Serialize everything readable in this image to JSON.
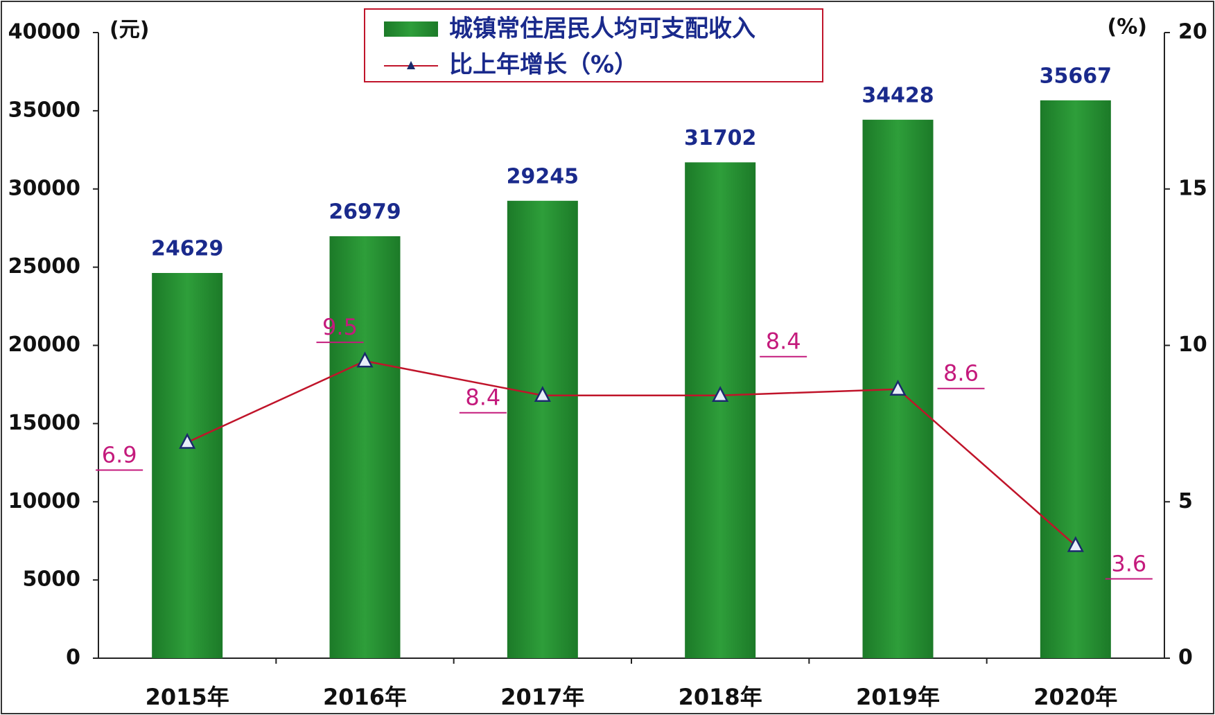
{
  "chart_data": {
    "type": "bar_line",
    "y_unit": "(元)",
    "y2_unit": "(%)",
    "categories": [
      "2015年",
      "2016年",
      "2017年",
      "2018年",
      "2019年",
      "2020年"
    ],
    "series": [
      {
        "name": "城镇常住居民人均可支配收入",
        "type": "bar",
        "color": "#2e9e3a",
        "values": [
          24629,
          26979,
          29245,
          31702,
          34428,
          35667
        ]
      },
      {
        "name": "比上年增长（%）",
        "type": "line",
        "axis": "y2",
        "color": "#c0142a",
        "values": [
          6.9,
          9.5,
          8.4,
          8.4,
          8.6,
          3.6
        ],
        "value_labels": [
          "6.9",
          "9.5",
          "8.4",
          "8.4",
          "8.6",
          "3.6"
        ]
      }
    ],
    "ylim": [
      0,
      40000
    ],
    "yticks": [
      0,
      5000,
      10000,
      15000,
      20000,
      25000,
      30000,
      35000,
      40000
    ],
    "y2lim": [
      0,
      20
    ],
    "y2ticks": [
      0,
      5,
      10,
      15,
      20
    ]
  }
}
